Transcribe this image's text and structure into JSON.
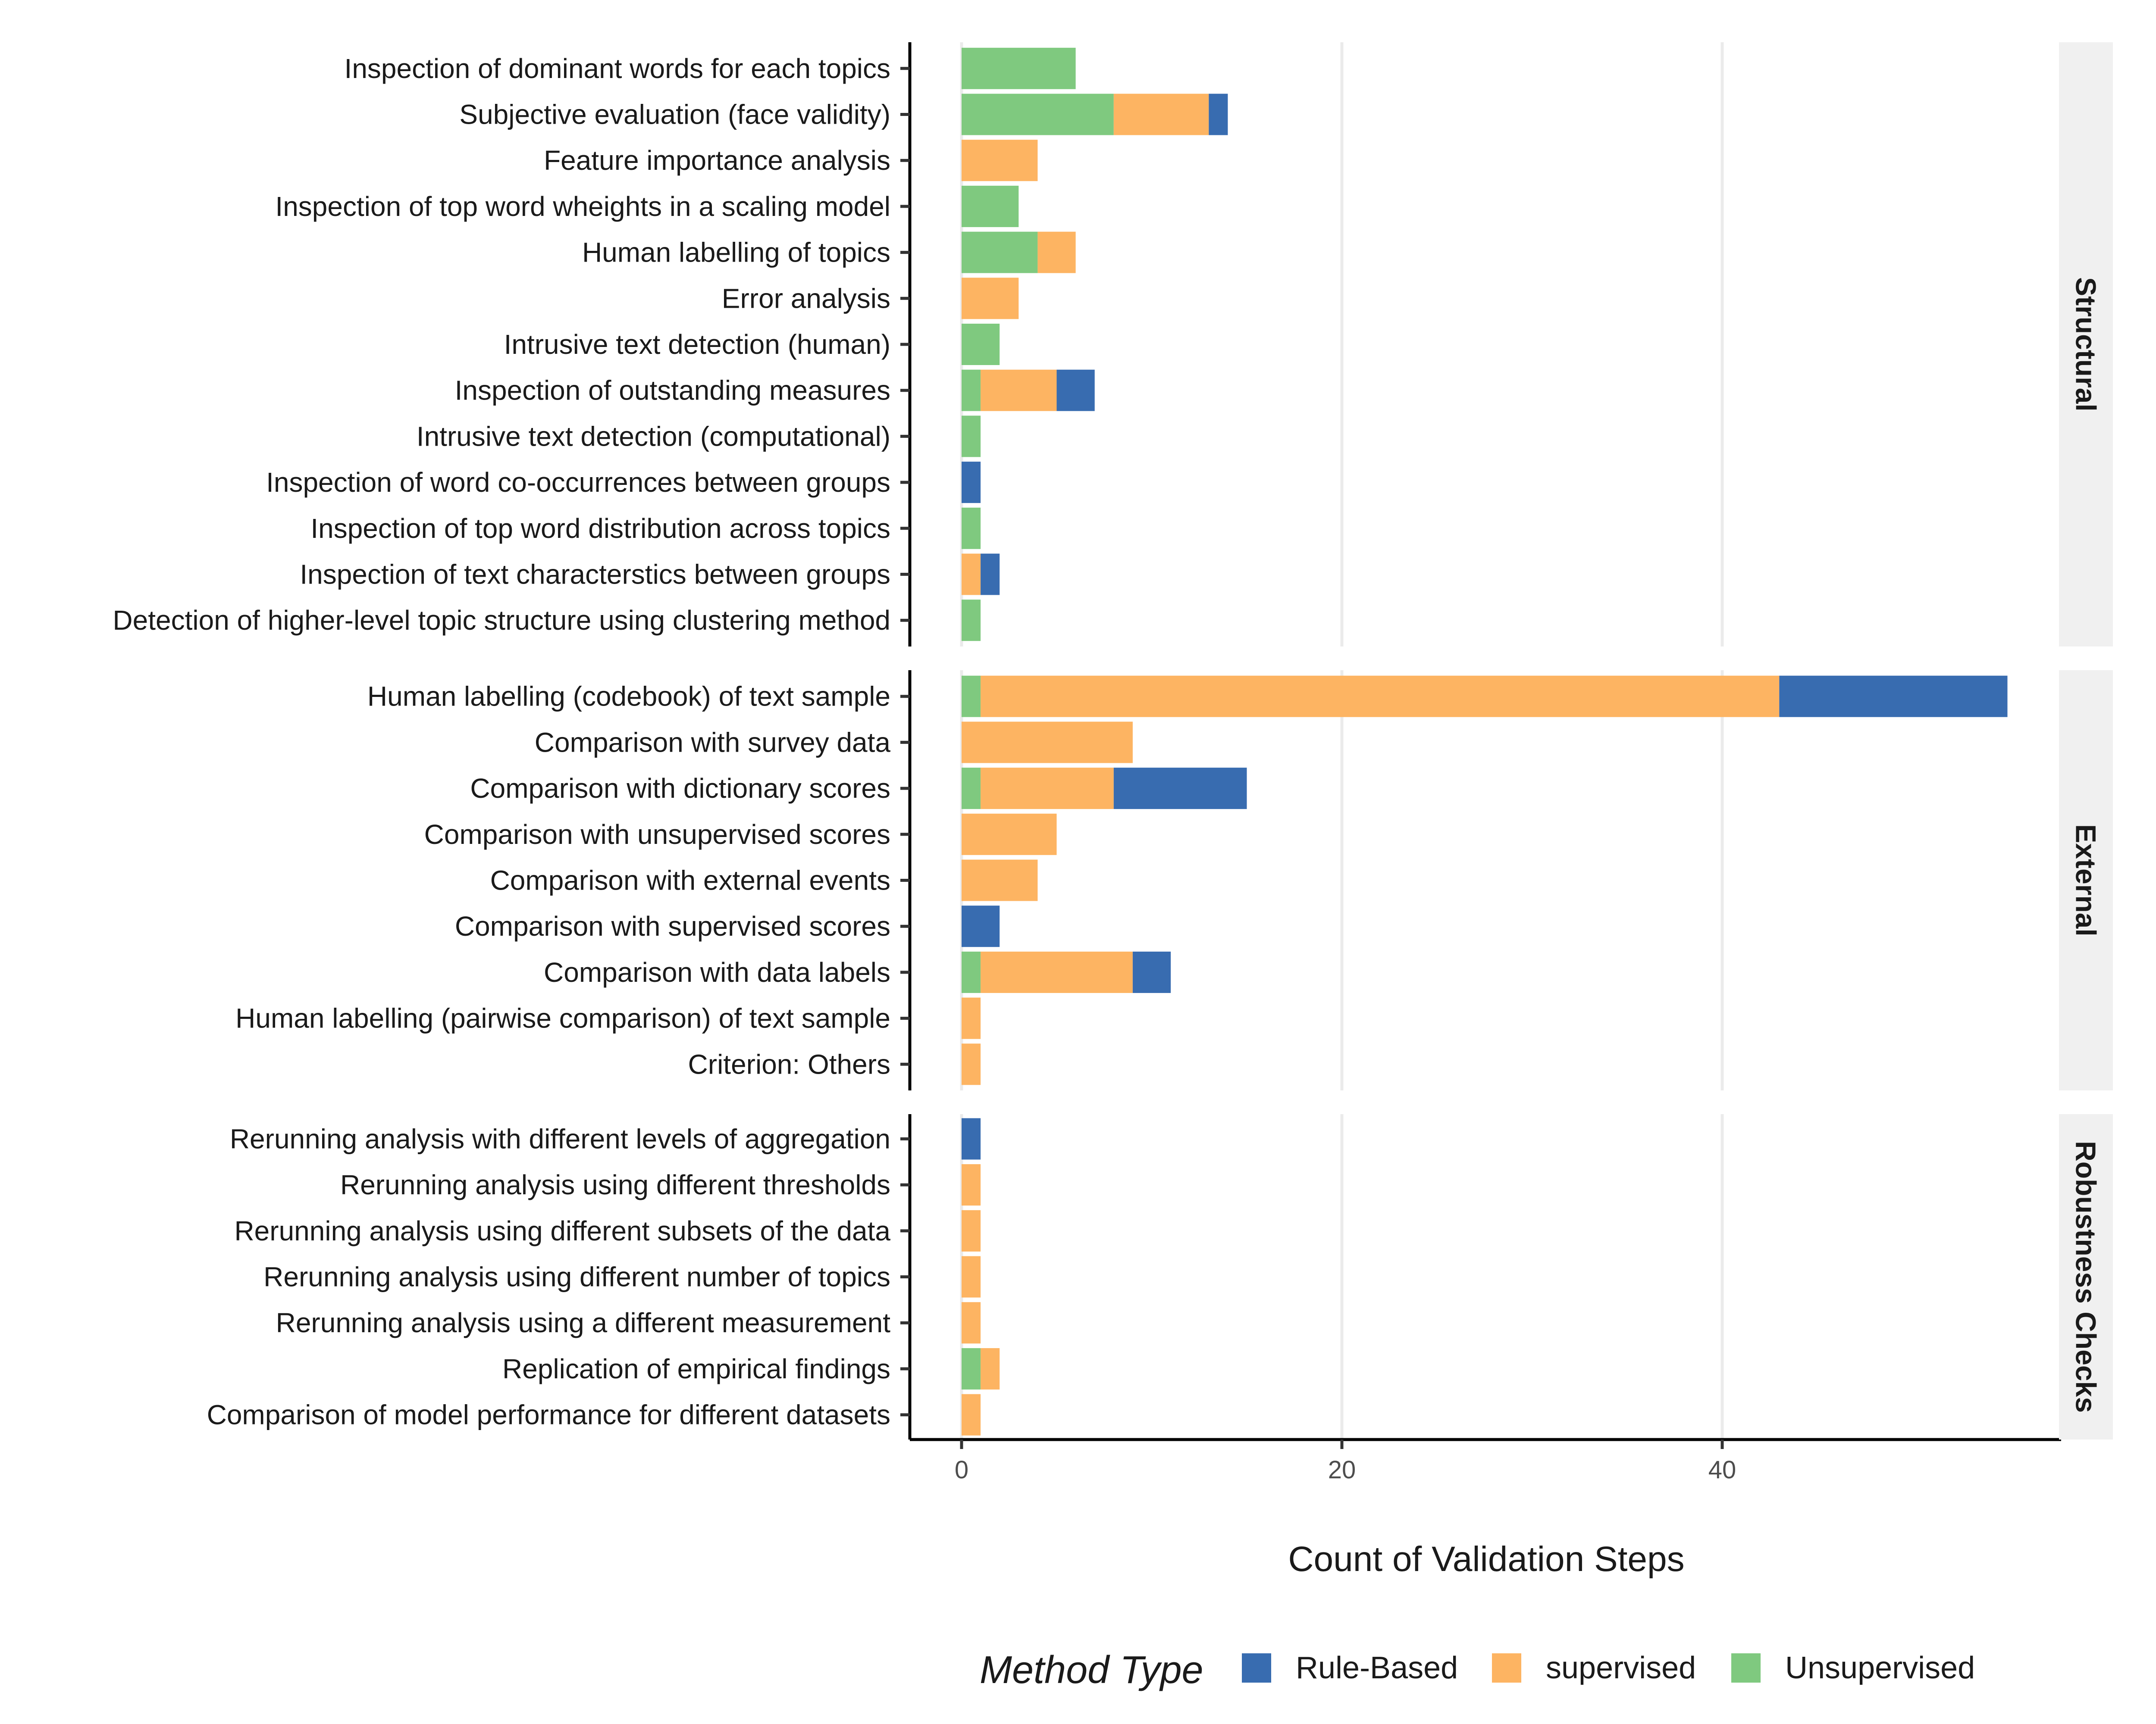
{
  "chart_data": {
    "type": "bar",
    "orientation": "horizontal",
    "stacked": true,
    "xlabel": "Count of Validation Steps",
    "xlim": [
      0,
      56
    ],
    "xticks": [
      0,
      20,
      40
    ],
    "grid": true,
    "legend": {
      "title": "Method Type",
      "position": "bottom",
      "entries": [
        "Rule-Based",
        "supervised",
        "Unsupervised"
      ]
    },
    "colors": {
      "Unsupervised": "#7fc97f",
      "supervised": "#fdb462",
      "Rule-Based": "#386cb0"
    },
    "stack_order": [
      "Unsupervised",
      "supervised",
      "Rule-Based"
    ],
    "panels": [
      {
        "name": "Structural",
        "categories": [
          {
            "label": "Inspection of dominant words for each topics",
            "Unsupervised": 6,
            "supervised": 0,
            "Rule-Based": 0
          },
          {
            "label": "Subjective evaluation (face validity)",
            "Unsupervised": 8,
            "supervised": 5,
            "Rule-Based": 1
          },
          {
            "label": "Feature importance analysis",
            "Unsupervised": 0,
            "supervised": 4,
            "Rule-Based": 0
          },
          {
            "label": "Inspection of top word wheights in a scaling model",
            "Unsupervised": 3,
            "supervised": 0,
            "Rule-Based": 0
          },
          {
            "label": "Human labelling of topics",
            "Unsupervised": 4,
            "supervised": 2,
            "Rule-Based": 0
          },
          {
            "label": "Error analysis",
            "Unsupervised": 0,
            "supervised": 3,
            "Rule-Based": 0
          },
          {
            "label": "Intrusive text detection (human)",
            "Unsupervised": 2,
            "supervised": 0,
            "Rule-Based": 0
          },
          {
            "label": "Inspection of outstanding measures",
            "Unsupervised": 1,
            "supervised": 4,
            "Rule-Based": 2
          },
          {
            "label": "Intrusive text detection (computational)",
            "Unsupervised": 1,
            "supervised": 0,
            "Rule-Based": 0
          },
          {
            "label": "Inspection of word co-occurrences between groups",
            "Unsupervised": 0,
            "supervised": 0,
            "Rule-Based": 1
          },
          {
            "label": "Inspection of top word distribution across topics",
            "Unsupervised": 1,
            "supervised": 0,
            "Rule-Based": 0
          },
          {
            "label": "Inspection of text  characterstics between groups",
            "Unsupervised": 0,
            "supervised": 1,
            "Rule-Based": 1
          },
          {
            "label": "Detection of higher-level topic structure using clustering method",
            "Unsupervised": 1,
            "supervised": 0,
            "Rule-Based": 0
          }
        ]
      },
      {
        "name": "External",
        "categories": [
          {
            "label": "Human labelling (codebook) of text sample",
            "Unsupervised": 1,
            "supervised": 42,
            "Rule-Based": 12
          },
          {
            "label": "Comparison with survey data",
            "Unsupervised": 0,
            "supervised": 9,
            "Rule-Based": 0
          },
          {
            "label": "Comparison with dictionary scores",
            "Unsupervised": 1,
            "supervised": 7,
            "Rule-Based": 7
          },
          {
            "label": "Comparison with unsupervised scores",
            "Unsupervised": 0,
            "supervised": 5,
            "Rule-Based": 0
          },
          {
            "label": "Comparison with external events",
            "Unsupervised": 0,
            "supervised": 4,
            "Rule-Based": 0
          },
          {
            "label": "Comparison with supervised scores",
            "Unsupervised": 0,
            "supervised": 0,
            "Rule-Based": 2
          },
          {
            "label": "Comparison with data labels",
            "Unsupervised": 1,
            "supervised": 8,
            "Rule-Based": 2
          },
          {
            "label": "Human labelling (pairwise comparison) of text sample",
            "Unsupervised": 0,
            "supervised": 1,
            "Rule-Based": 0
          },
          {
            "label": "Criterion: Others",
            "Unsupervised": 0,
            "supervised": 1,
            "Rule-Based": 0
          }
        ]
      },
      {
        "name": "Robustness Checks",
        "categories": [
          {
            "label": "Rerunning analysis with different levels of aggregation",
            "Unsupervised": 0,
            "supervised": 0,
            "Rule-Based": 1
          },
          {
            "label": "Rerunning analysis using different thresholds",
            "Unsupervised": 0,
            "supervised": 1,
            "Rule-Based": 0
          },
          {
            "label": "Rerunning analysis using different subsets of the data",
            "Unsupervised": 0,
            "supervised": 1,
            "Rule-Based": 0
          },
          {
            "label": "Rerunning analysis using different number of topics",
            "Unsupervised": 0,
            "supervised": 1,
            "Rule-Based": 0
          },
          {
            "label": "Rerunning analysis using a different measurement",
            "Unsupervised": 0,
            "supervised": 1,
            "Rule-Based": 0
          },
          {
            "label": "Replication of empirical findings",
            "Unsupervised": 1,
            "supervised": 1,
            "Rule-Based": 0
          },
          {
            "label": "Comparison of model performance for different datasets",
            "Unsupervised": 0,
            "supervised": 1,
            "Rule-Based": 0
          }
        ]
      }
    ]
  }
}
